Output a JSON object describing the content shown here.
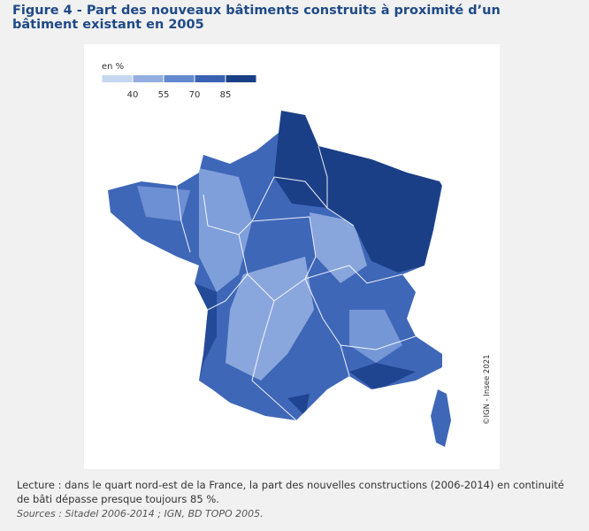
{
  "header": {
    "title": "Figure 4 - Part des nouveaux bâtiments construits à proximité d’un bâtiment existant en 2005"
  },
  "legend": {
    "title": "en %",
    "ticks": [
      40,
      55,
      70,
      85
    ],
    "colors": [
      "#c6d7f0",
      "#93aedf",
      "#6489cf",
      "#3a62b3",
      "#1b3f86"
    ]
  },
  "map": {
    "credit": "©IGN - Insee 2021"
  },
  "footer": {
    "note": "Lecture : dans le quart nord-est de la France, la part des nouvelles constructions (2006-2014) en continuité de bâti dépasse presque toujours 85 %.",
    "sources": "Sources : Sitadel 2006-2014 ; IGN, BD TOPO 2005."
  }
}
